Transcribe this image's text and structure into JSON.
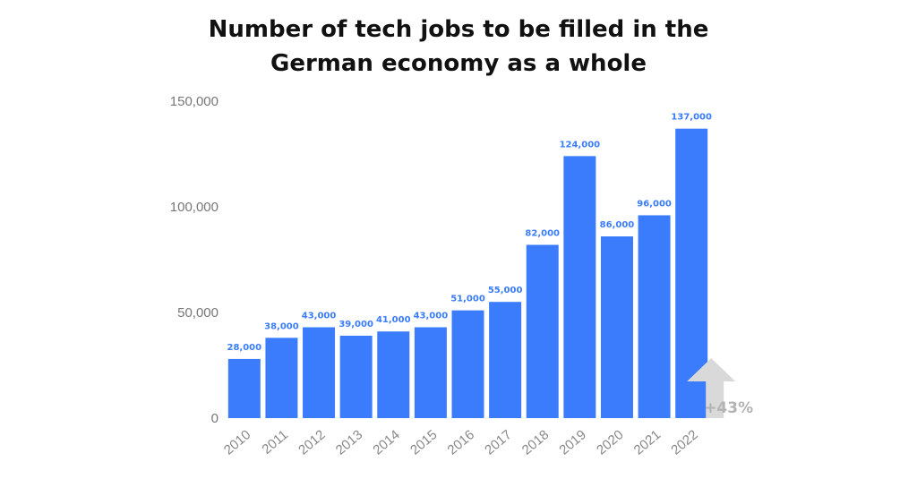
{
  "chart_data": {
    "type": "bar",
    "title_line1": "Number of tech jobs to be filled in the",
    "title_line2": "German economy as a whole",
    "categories": [
      "2010",
      "2011",
      "2012",
      "2013",
      "2014",
      "2015",
      "2016",
      "2017",
      "2018",
      "2019",
      "2020",
      "2021",
      "2022"
    ],
    "values": [
      28000,
      38000,
      43000,
      39000,
      41000,
      43000,
      51000,
      55000,
      82000,
      124000,
      86000,
      96000,
      137000
    ],
    "data_labels": [
      "28,000",
      "38,000",
      "43,000",
      "39,000",
      "41,000",
      "43,000",
      "51,000",
      "55,000",
      "82,000",
      "124,000",
      "86,000",
      "96,000",
      "137,000"
    ],
    "ylim": [
      0,
      150000
    ],
    "yticks": [
      0,
      50000,
      100000,
      150000
    ],
    "ytick_labels": [
      "0",
      "50,000",
      "100,000",
      "150,000"
    ],
    "grid": false,
    "bar_color": "#3a7cfb",
    "label_color": "#3a7cfb",
    "annotation": {
      "text": "+43%",
      "icon": "up-arrow-icon",
      "color": "#d9d9d9"
    }
  }
}
